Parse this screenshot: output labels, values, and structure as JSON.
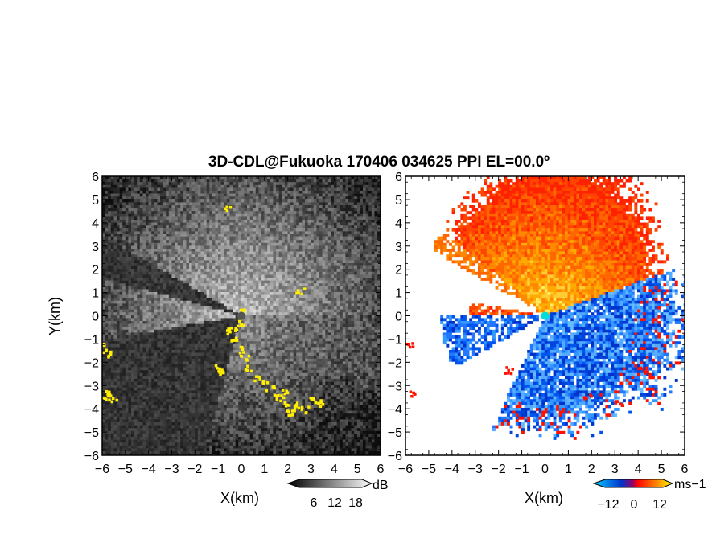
{
  "title": "3D-CDL@Fukuoka 170406 034625 PPI EL=00.0º",
  "chart_data": [
    {
      "type": "heatmap",
      "name": "signal-intensity-ppi",
      "xlabel": "X(km)",
      "ylabel": "Y(km)",
      "xlim": [
        -6,
        6
      ],
      "ylim": [
        -6,
        6
      ],
      "xticks": [
        "−6",
        "−5",
        "−4",
        "−3",
        "−2",
        "−1",
        "0",
        "1",
        "2",
        "3",
        "4",
        "5",
        "6"
      ],
      "yticks": [
        "6",
        "5",
        "4",
        "3",
        "2",
        "1",
        "0",
        "−1",
        "−2",
        "−3",
        "−4",
        "−5",
        "−6"
      ],
      "colormap": "grayscale",
      "highlight_color": "#ffee00",
      "colorbar": {
        "unit": "dB",
        "ticks": [
          "6",
          "12",
          "18"
        ],
        "range": [
          0,
          24
        ]
      }
    },
    {
      "type": "heatmap",
      "name": "doppler-velocity-ppi",
      "xlabel": "X(km)",
      "ylabel": "",
      "xlim": [
        -6,
        6
      ],
      "ylim": [
        -6,
        6
      ],
      "xticks": [
        "−6",
        "−5",
        "−4",
        "−3",
        "−2",
        "−1",
        "0",
        "1",
        "2",
        "3",
        "4",
        "5",
        "6"
      ],
      "yticks": [
        "6",
        "5",
        "4",
        "3",
        "2",
        "1",
        "0",
        "−1",
        "−2",
        "−3",
        "−4",
        "−5",
        "−6"
      ],
      "colormap": "blue-red-yellow",
      "colorbar": {
        "unit": "ms−1",
        "ticks": [
          "−12",
          "0",
          "12"
        ],
        "range": [
          -18,
          18
        ]
      }
    }
  ]
}
